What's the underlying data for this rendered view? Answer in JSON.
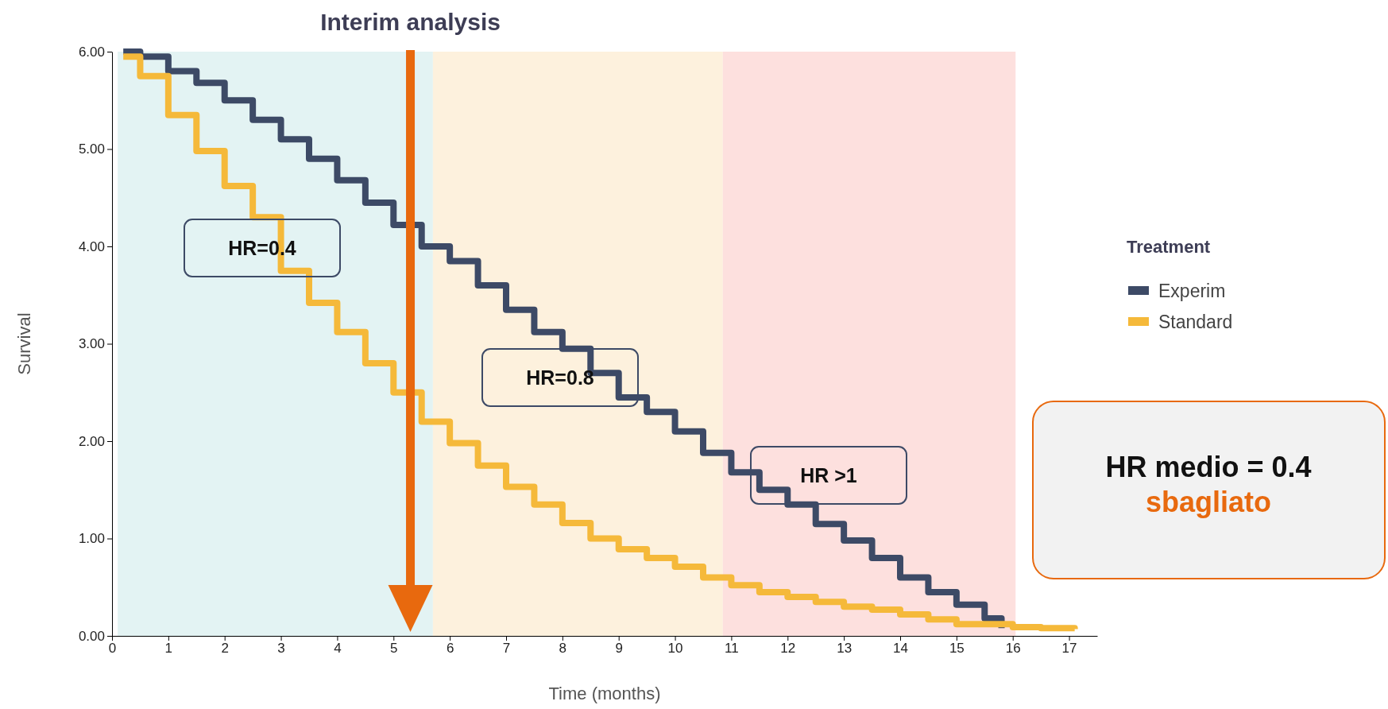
{
  "chart_data": {
    "type": "step",
    "xlabel": "Time (months)",
    "ylabel": "Survival",
    "legend_title": "Treatment",
    "legend": "right",
    "xlim": [
      0,
      17.5
    ],
    "ylim": [
      0,
      6
    ],
    "xticks": [
      0,
      1,
      2,
      3,
      4,
      5,
      6,
      7,
      8,
      9,
      10,
      11,
      12,
      13,
      14,
      15,
      16,
      17
    ],
    "yticks": [
      {
        "value": 0,
        "label": "0.00"
      },
      {
        "value": 1,
        "label": "1.00"
      },
      {
        "value": 2,
        "label": "2.00"
      },
      {
        "value": 3,
        "label": "3.00"
      },
      {
        "value": 4,
        "label": "4.00"
      },
      {
        "value": 5,
        "label": "5.00"
      },
      {
        "value": 6,
        "label": "6.00"
      }
    ],
    "series": [
      {
        "name": "Experim",
        "color": "#3d4a66",
        "x": [
          0.2,
          0.5,
          1,
          1.5,
          2,
          2.5,
          3,
          3.5,
          4,
          4.5,
          5,
          5.5,
          6,
          6.5,
          7,
          7.5,
          8,
          8.5,
          9,
          9.5,
          10,
          10.5,
          11,
          11.5,
          12,
          12.5,
          13,
          13.5,
          14,
          14.5,
          15,
          15.5,
          15.8
        ],
        "values": [
          6.0,
          5.95,
          5.8,
          5.68,
          5.5,
          5.3,
          5.1,
          4.9,
          4.68,
          4.45,
          4.22,
          4.0,
          3.85,
          3.6,
          3.35,
          3.12,
          2.95,
          2.7,
          2.45,
          2.3,
          2.1,
          1.88,
          1.68,
          1.5,
          1.35,
          1.15,
          0.98,
          0.8,
          0.6,
          0.45,
          0.32,
          0.18,
          0.08
        ]
      },
      {
        "name": "Standard",
        "color": "#f5b93a",
        "x": [
          0.2,
          0.5,
          1,
          1.5,
          2,
          2.5,
          3,
          3.5,
          4,
          4.5,
          5,
          5.5,
          6,
          6.5,
          7,
          7.5,
          8,
          8.5,
          9,
          9.5,
          10,
          10.5,
          11,
          11.5,
          12,
          12.5,
          13,
          13.5,
          14,
          14.5,
          15,
          15.5,
          16,
          16.5,
          17.1
        ],
        "values": [
          5.95,
          5.75,
          5.35,
          4.98,
          4.62,
          4.3,
          3.75,
          3.42,
          3.12,
          2.8,
          2.5,
          2.2,
          1.98,
          1.75,
          1.53,
          1.35,
          1.16,
          1.0,
          0.89,
          0.8,
          0.71,
          0.6,
          0.52,
          0.45,
          0.4,
          0.35,
          0.3,
          0.27,
          0.22,
          0.17,
          0.12,
          0.12,
          0.09,
          0.08,
          0.07
        ]
      }
    ],
    "bands": [
      {
        "axis": "x",
        "from": 0.1,
        "to": 5.7,
        "color": "#e3f3f3"
      },
      {
        "axis": "x",
        "from": 5.7,
        "to": 10.85,
        "color": "#fdf1dd"
      },
      {
        "axis": "x",
        "from": 10.85,
        "to": 16.05,
        "color": "#fde0de"
      }
    ],
    "ref_lines": [
      {
        "axis": "x",
        "value": 5.3,
        "label": "Interim analysis",
        "color": "#e8690e"
      }
    ],
    "annotations": [
      "HR=0.4",
      "HR=0.8",
      "HR >1",
      "HR medio = 0.4",
      "sbagliato"
    ]
  }
}
